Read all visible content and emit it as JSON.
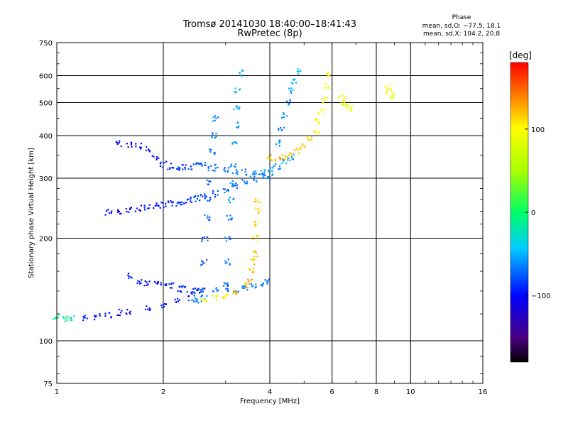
{
  "header": {
    "title": "Tromsø 20141030 18:40:00–18:41:43",
    "subtitle": "RwPretec (8p)"
  },
  "phase_info": {
    "title": "Phase",
    "o_line": "mean, sd,O: −77.5, 18.1",
    "x_line": "mean, sd,X: 104.2, 20.8"
  },
  "colorbar": {
    "label": "[deg]",
    "min": -180,
    "max": 180,
    "ticks": [
      100,
      0,
      -100
    ],
    "tick_labels": [
      "100",
      "0",
      "−100"
    ]
  },
  "chart_data": {
    "type": "scatter",
    "xlabel": "Frequency [MHz]",
    "ylabel": "Stationary phase Virtual Height [km]",
    "xscale": "log",
    "yscale": "log",
    "xlim": [
      1,
      16
    ],
    "ylim": [
      75,
      750
    ],
    "xticks": [
      1,
      2,
      4,
      6,
      8,
      10,
      16
    ],
    "xtick_labels": [
      "1",
      "2",
      "4",
      "6",
      "8",
      "10",
      "16"
    ],
    "yticks": [
      75,
      100,
      200,
      300,
      400,
      500,
      600,
      750
    ],
    "ytick_labels": [
      "75",
      "100",
      "200",
      "300",
      "400",
      "500",
      "600",
      "750"
    ],
    "grid": true,
    "color_scale": "phase (deg), rainbow from black (-180) through blue (-100), cyan, green (0), yellow (100), red (180)",
    "series": [
      {
        "name": "O-mode",
        "mean_phase": -77.5,
        "segments": [
          {
            "f": [
              1.0,
              1.05,
              1.1,
              1.2,
              1.3,
              1.4,
              1.5,
              1.6,
              1.8,
              2.0,
              2.2,
              2.4,
              2.5,
              2.6
            ],
            "h": [
              118,
              116,
              116,
              117,
              118,
              119,
              121,
              122,
              125,
              128,
              131,
              133,
              132,
              133
            ],
            "phase": [
              -5,
              -10,
              -20,
              -90,
              -100,
              -105,
              -105,
              -100,
              -100,
              -95,
              -95,
              -90,
              -60,
              -60
            ]
          },
          {
            "f": [
              1.6,
              1.7,
              1.8,
              1.9,
              2.0,
              2.1,
              2.2,
              2.3,
              2.4,
              2.5,
              2.6,
              2.8,
              3.0,
              3.2,
              3.4,
              3.6,
              3.8,
              3.9
            ],
            "h": [
              155,
              150,
              148,
              146,
              147,
              145,
              142,
              142,
              140,
              140,
              142,
              142,
              142,
              140,
              142,
              145,
              148,
              150
            ],
            "phase": [
              -95,
              -100,
              -100,
              -95,
              -95,
              -90,
              -90,
              -85,
              -85,
              -80,
              -80,
              -70,
              -70,
              -65,
              -60,
              -60,
              -60,
              -60
            ]
          },
          {
            "f": [
              1.4,
              1.5,
              1.6,
              1.7,
              1.8,
              1.9,
              2.0,
              2.1,
              2.2,
              2.3,
              2.4,
              2.5,
              2.6,
              2.8,
              3.0,
              3.2,
              3.4,
              3.6,
              3.8,
              4.0
            ],
            "h": [
              238,
              240,
              242,
              245,
              247,
              249,
              250,
              252,
              254,
              256,
              259,
              262,
              264,
              270,
              278,
              285,
              292,
              298,
              302,
              305
            ],
            "phase": [
              -105,
              -105,
              -100,
              -100,
              -95,
              -95,
              -95,
              -90,
              -90,
              -85,
              -85,
              -80,
              -80,
              -75,
              -70,
              -70,
              -65,
              -60,
              -60,
              -55
            ]
          },
          {
            "f": [
              1.5,
              1.6,
              1.7,
              1.8,
              1.9,
              2.0,
              2.1,
              2.2,
              2.3,
              2.4,
              2.5,
              2.6,
              2.8,
              3.0,
              3.2,
              3.4,
              3.6,
              3.8,
              4.0,
              4.2,
              4.4,
              4.6
            ],
            "h": [
              380,
              375,
              372,
              365,
              345,
              330,
              325,
              322,
              322,
              325,
              330,
              328,
              322,
              318,
              315,
              312,
              310,
              312,
              318,
              325,
              335,
              345
            ],
            "phase": [
              -100,
              -100,
              -95,
              -95,
              -95,
              -90,
              -90,
              -90,
              -85,
              -80,
              -75,
              -75,
              -70,
              -70,
              -65,
              -65,
              -60,
              -60,
              -55,
              -55,
              -50,
              -50
            ]
          },
          {
            "f": [
              2.55,
              2.6,
              2.62,
              2.65,
              2.68,
              2.7,
              2.72,
              2.75,
              2.78,
              2.8
            ],
            "h": [
              140,
              170,
              200,
              230,
              260,
              290,
              320,
              360,
              400,
              450
            ],
            "phase": [
              -80,
              -80,
              -75,
              -75,
              -70,
              -70,
              -65,
              -65,
              -60,
              -60
            ]
          },
          {
            "f": [
              3.0,
              3.02,
              3.05,
              3.08,
              3.1,
              3.12,
              3.15,
              3.18,
              3.2,
              3.22,
              3.25,
              3.3
            ],
            "h": [
              145,
              170,
              200,
              230,
              260,
              290,
              330,
              380,
              430,
              480,
              540,
              610
            ],
            "phase": [
              -70,
              -70,
              -65,
              -65,
              -60,
              -60,
              -60,
              -55,
              -55,
              -55,
              -50,
              -50
            ]
          },
          {
            "f": [
              4.2,
              4.3,
              4.4,
              4.5,
              4.6,
              4.7,
              4.8
            ],
            "h": [
              380,
              420,
              460,
              500,
              540,
              580,
              620
            ],
            "phase": [
              -60,
              -60,
              -55,
              -55,
              -50,
              -50,
              -45
            ]
          }
        ]
      },
      {
        "name": "X-mode",
        "mean_phase": 104.2,
        "segments": [
          {
            "f": [
              2.6,
              2.8,
              3.0,
              3.2,
              3.4,
              3.5,
              3.55,
              3.6,
              3.62,
              3.65,
              3.68,
              3.7,
              3.7
            ],
            "h": [
              133,
              134,
              136,
              140,
              145,
              150,
              160,
              170,
              180,
              200,
              220,
              240,
              260
            ],
            "phase": [
              100,
              105,
              110,
              120,
              125,
              130,
              125,
              120,
              120,
              115,
              115,
              110,
              110
            ]
          },
          {
            "f": [
              4.0,
              4.2,
              4.4,
              4.6,
              4.8,
              5.0,
              5.2,
              5.4,
              5.5,
              5.6,
              5.7,
              5.8,
              5.8
            ],
            "h": [
              345,
              340,
              345,
              352,
              360,
              372,
              390,
              410,
              440,
              470,
              510,
              560,
              610
            ],
            "phase": [
              120,
              125,
              125,
              120,
              120,
              115,
              110,
              105,
              100,
              95,
              95,
              90,
              90
            ]
          },
          {
            "f": [
              6.4,
              6.5,
              6.6,
              6.7,
              8.6,
              8.7,
              8.8
            ],
            "h": [
              515,
              500,
              490,
              480,
              560,
              540,
              520
            ],
            "phase": [
              90,
              90,
              85,
              85,
              95,
              95,
              90
            ]
          }
        ]
      }
    ]
  }
}
